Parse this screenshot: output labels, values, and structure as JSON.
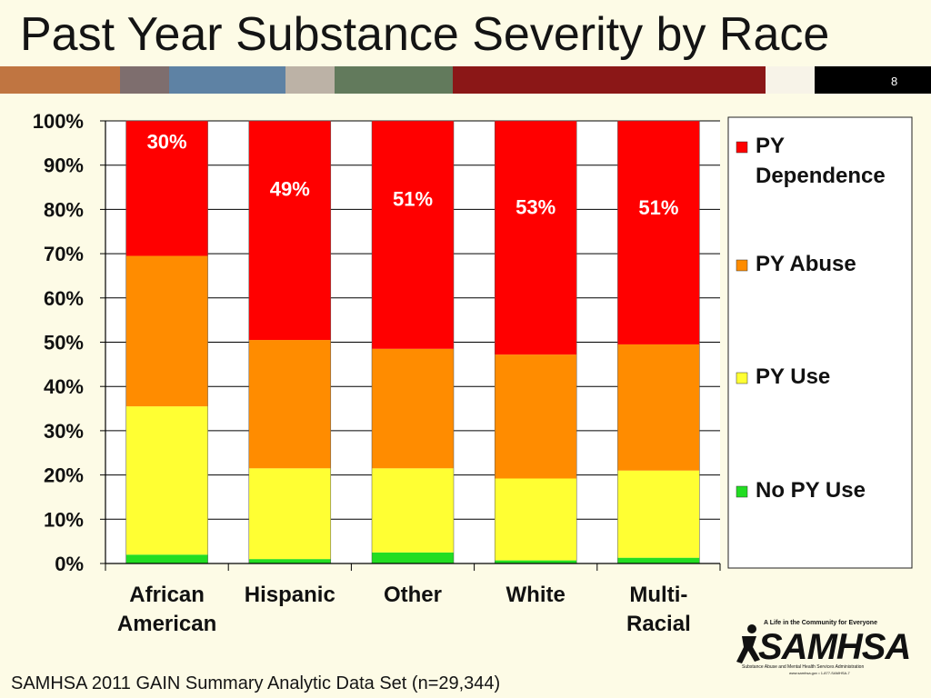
{
  "slide": {
    "title": "Past Year Substance Severity by Race",
    "page_number": "8",
    "footer": "SAMHSA 2011 GAIN Summary Analytic Data Set (n=29,344)",
    "band_colors": [
      "#c07541",
      "#7e6e6e",
      "#5e82a4",
      "#bcb2a6",
      "#627a5c",
      "#8b1717",
      "#f7f3e8",
      "#000000"
    ]
  },
  "logo": {
    "tagline": "A Life in the Community for Everyone",
    "wordmark": "SAMHSA",
    "subtitle": "Substance Abuse and Mental Health Services Administration",
    "url": "www.samhsa.gov • 1-877-SAMHSA-7"
  },
  "chart_data": {
    "type": "bar",
    "stacked": true,
    "categories": [
      "African American",
      "Hispanic",
      "Other",
      "White",
      "Multi-Racial"
    ],
    "category_lines": [
      [
        "African",
        "American"
      ],
      [
        "Hispanic"
      ],
      [
        "Other"
      ],
      [
        "White"
      ],
      [
        "Multi-",
        "Racial"
      ]
    ],
    "series": [
      {
        "name": "No PY Use",
        "color": "#22dd22",
        "values": [
          2,
          1,
          2.5,
          0.7,
          1.3
        ]
      },
      {
        "name": "PY Use",
        "color": "#ffff33",
        "values": [
          33.5,
          20.5,
          19,
          18.5,
          19.7
        ]
      },
      {
        "name": "PY Abuse",
        "color": "#ff8c00",
        "values": [
          34,
          29,
          27,
          28,
          28.5
        ]
      },
      {
        "name": "PY Dependence",
        "color": "#ff0000",
        "values": [
          30.5,
          49.5,
          51.5,
          52.8,
          50.5
        ]
      }
    ],
    "data_labels": [
      "30%",
      "49%",
      "51%",
      "53%",
      "51%"
    ],
    "ylim": [
      0,
      100
    ],
    "yticks": [
      "0%",
      "10%",
      "20%",
      "30%",
      "40%",
      "50%",
      "60%",
      "70%",
      "80%",
      "90%",
      "100%"
    ],
    "legend": {
      "position": "right",
      "entries": [
        {
          "lines": [
            "PY",
            "Dependence"
          ],
          "color": "#ff0000"
        },
        {
          "lines": [
            "PY Abuse"
          ],
          "color": "#ff8c00"
        },
        {
          "lines": [
            "PY Use"
          ],
          "color": "#ffff33"
        },
        {
          "lines": [
            "No PY Use"
          ],
          "color": "#22dd22"
        }
      ]
    },
    "grid": true
  }
}
